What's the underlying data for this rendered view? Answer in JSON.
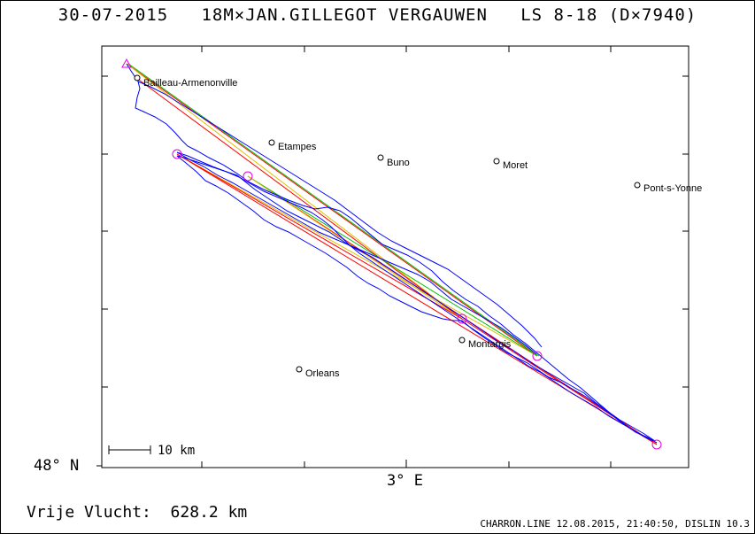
{
  "header": {
    "title": "30-07-2015   18M×JAN.GILLEGOT VERGAUWEN   LS 8-18 (D×7940)"
  },
  "axes": {
    "lat_label": "48° N",
    "lon_label": "3° E"
  },
  "scale": {
    "label": "10 km"
  },
  "towns": [
    {
      "name": "Bailleau-Armenonville"
    },
    {
      "name": "Etampes"
    },
    {
      "name": "Buno"
    },
    {
      "name": "Moret"
    },
    {
      "name": "Pont-s-Yonne"
    },
    {
      "name": "Montargis"
    },
    {
      "name": "Orleans"
    }
  ],
  "footer": {
    "distance": "Vrije Vlucht:  628.2 km",
    "credit": "CHARRON.LINE 12.08.2015, 21:40:50, DISLIN 10.3"
  },
  "colors": {
    "track": "#0000ff",
    "turnpoint": "#e000e0",
    "task_line_red": "#ff0000",
    "task_line_green": "#00c000",
    "task_line_yellow": "#e0c000",
    "frame": "#000000"
  }
}
